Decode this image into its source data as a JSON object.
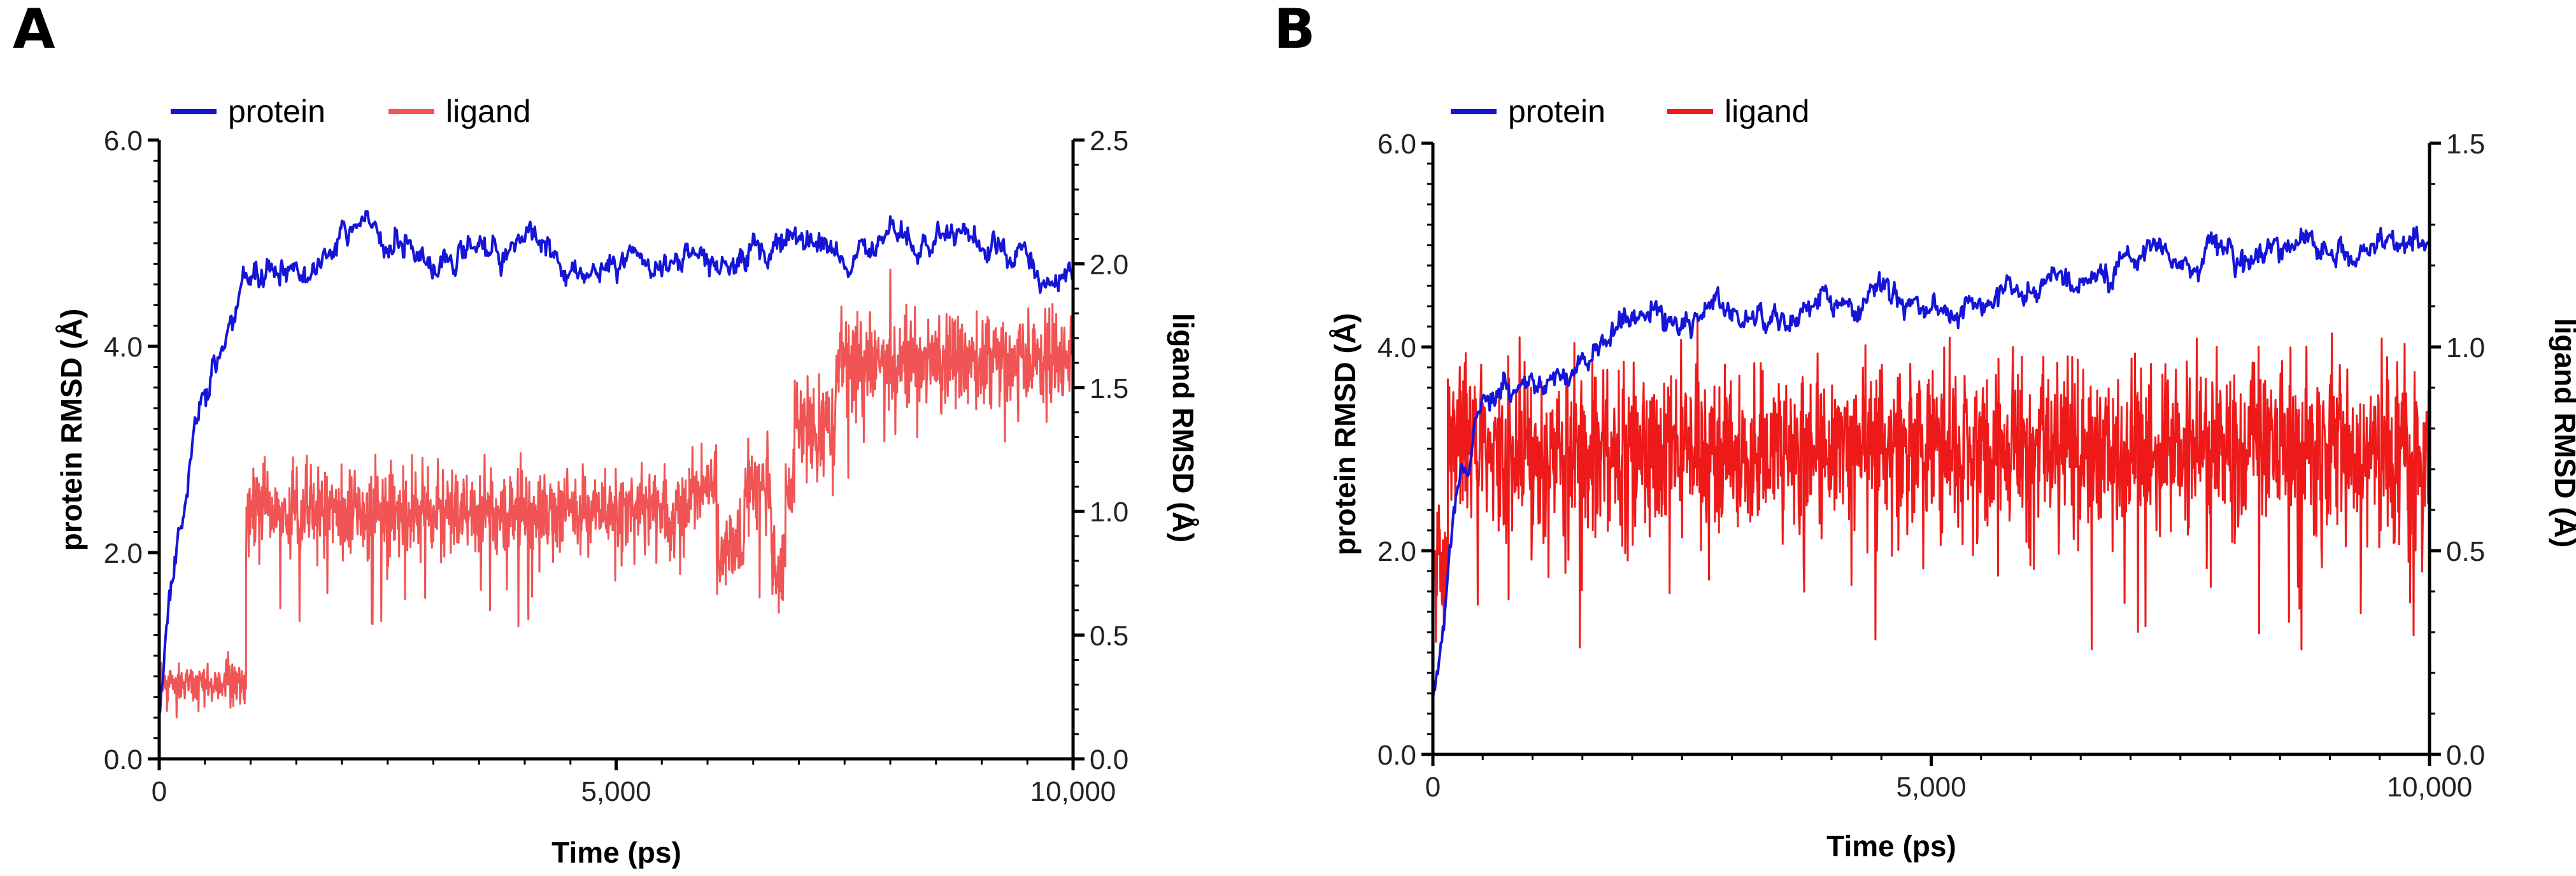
{
  "colors": {
    "protein": "#1515d8",
    "ligand_a": "#f05454",
    "ligand_b": "#ee1a1a",
    "axis": "#000000"
  },
  "chart_data": [
    {
      "type": "line",
      "panel_label": "A",
      "legend": {
        "position": "top-left",
        "entries": [
          "protein",
          "ligand"
        ]
      },
      "xlabel": "Time (ps)",
      "ylabel": "protein RMSD (Å)",
      "y2label": "ligand RMSD (Å)",
      "xlim": [
        0,
        10000
      ],
      "ylim": [
        0,
        6
      ],
      "y2lim": [
        0,
        2.5
      ],
      "xticks": [
        0,
        5000,
        10000
      ],
      "xtick_labels": [
        "0",
        "5,000",
        "10,000"
      ],
      "yticks": [
        0,
        2,
        4,
        6
      ],
      "ytick_labels": [
        "0.0",
        "2.0",
        "4.0",
        "6.0"
      ],
      "y2ticks": [
        0,
        0.5,
        1,
        1.5,
        2,
        2.5
      ],
      "y2tick_labels": [
        "0.0",
        "0.5",
        "1.0",
        "1.5",
        "2.0",
        "2.5"
      ],
      "series": [
        {
          "name": "protein",
          "axis": "left",
          "seed": 11,
          "noise": 0.07,
          "x": [
            0,
            100,
            200,
            300,
            400,
            500,
            600,
            700,
            800,
            900,
            1000,
            1200,
            1400,
            1600,
            1800,
            2000,
            2200,
            2400,
            2600,
            2800,
            3000,
            3300,
            3600,
            4000,
            4300,
            4600,
            4900,
            5200,
            5500,
            5800,
            6100,
            6400,
            6700,
            7000,
            7300,
            7600,
            7900,
            8200,
            8500,
            8800,
            9100,
            9400,
            9700,
            10000
          ],
          "y": [
            0.5,
            1.5,
            2.1,
            2.7,
            3.3,
            3.5,
            3.75,
            4.0,
            4.2,
            4.4,
            4.6,
            4.65,
            4.7,
            4.65,
            4.85,
            5.0,
            5.1,
            5.15,
            5.0,
            4.9,
            4.85,
            4.8,
            4.9,
            5.0,
            4.95,
            4.75,
            4.8,
            4.85,
            4.8,
            4.85,
            4.8,
            4.85,
            4.9,
            5.1,
            5.05,
            4.9,
            4.95,
            4.95,
            5.05,
            4.95,
            4.85,
            4.85,
            4.75,
            4.6
          ]
        },
        {
          "name": "ligand",
          "axis": "right",
          "seed": 23,
          "segments": [
            {
              "x0": 0,
              "x1": 950,
              "mean": 0.3,
              "noise": 0.04,
              "dips": []
            },
            {
              "x0": 950,
              "x1": 5800,
              "mean": 1.0,
              "noise": 0.08,
              "dips": []
            },
            {
              "x0": 5800,
              "x1": 6950,
              "mean": 1.1,
              "noise": 0.08,
              "dips": [
                [
                  6100,
                  6400,
                  0.85
                ],
                [
                  6700,
                  6850,
                  0.8
                ]
              ]
            },
            {
              "x0": 6950,
              "x1": 7400,
              "mean": 1.35,
              "noise": 0.1,
              "dips": []
            },
            {
              "x0": 7400,
              "x1": 10000,
              "mean": 1.6,
              "noise": 0.1,
              "dips": []
            }
          ]
        }
      ]
    },
    {
      "type": "line",
      "panel_label": "B",
      "legend": {
        "position": "top-left",
        "entries": [
          "protein",
          "ligand"
        ]
      },
      "xlabel": "Time (ps)",
      "ylabel": "protein RMSD (Å)",
      "y2label": "ligand RMSD (Å)",
      "xlim": [
        0,
        10000
      ],
      "ylim": [
        0,
        6
      ],
      "y2lim": [
        0,
        1.5
      ],
      "xticks": [
        0,
        5000,
        10000
      ],
      "xtick_labels": [
        "0",
        "5,000",
        "10,000"
      ],
      "yticks": [
        0,
        2,
        4,
        6
      ],
      "ytick_labels": [
        "0.0",
        "2.0",
        "4.0",
        "6.0"
      ],
      "y2ticks": [
        0,
        0.5,
        1,
        1.5
      ],
      "y2tick_labels": [
        "0.0",
        "0.5",
        "1.0",
        "1.5"
      ],
      "series": [
        {
          "name": "protein",
          "axis": "left",
          "seed": 37,
          "noise": 0.07,
          "x": [
            0,
            100,
            200,
            300,
            400,
            500,
            700,
            900,
            1100,
            1300,
            1500,
            1700,
            2000,
            2300,
            2600,
            3000,
            3500,
            4000,
            4500,
            5000,
            5500,
            6000,
            6500,
            7000,
            7500,
            8000,
            8500,
            9000,
            9500,
            10000
          ],
          "y": [
            0.5,
            1.4,
            2.2,
            2.8,
            3.2,
            3.5,
            3.65,
            3.7,
            3.6,
            3.75,
            3.9,
            4.1,
            4.3,
            4.3,
            4.35,
            4.35,
            4.3,
            4.4,
            4.45,
            4.45,
            4.45,
            4.5,
            4.65,
            4.75,
            4.75,
            4.85,
            4.95,
            4.95,
            4.95,
            5.0
          ]
        },
        {
          "name": "ligand",
          "axis": "right",
          "seed": 53,
          "segments": [
            {
              "x0": 0,
              "x1": 150,
              "mean": 0.45,
              "noise": 0.08,
              "dips": []
            },
            {
              "x0": 150,
              "x1": 10000,
              "mean": 0.75,
              "noise": 0.1,
              "dips": []
            }
          ]
        }
      ]
    }
  ]
}
